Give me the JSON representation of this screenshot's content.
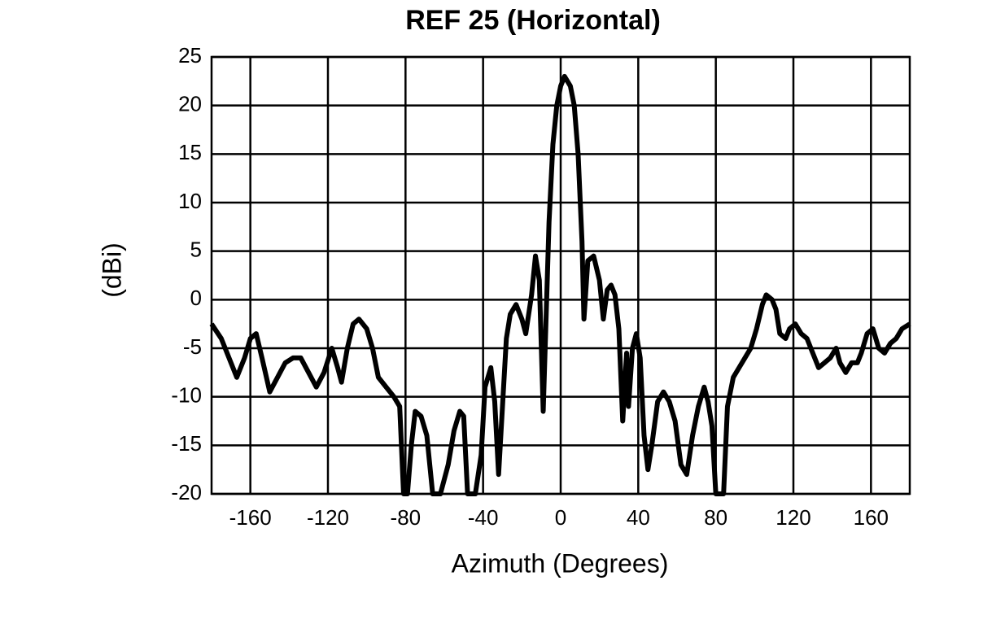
{
  "chart_data": {
    "type": "line",
    "title": "REF 25 (Horizontal)",
    "x_label": "Azimuth (Degrees)",
    "y_label": "(dBi)",
    "x": [
      -180,
      -175,
      -170,
      -167,
      -163,
      -160,
      -157,
      -154,
      -150,
      -146,
      -142,
      -138,
      -134,
      -130,
      -126,
      -122,
      -118,
      -115,
      -113,
      -110,
      -107,
      -104,
      -100,
      -97,
      -94,
      -90,
      -86,
      -83,
      -81,
      -79,
      -77,
      -75,
      -72,
      -69,
      -66,
      -62,
      -58,
      -55,
      -52,
      -50,
      -48,
      -44,
      -41,
      -39,
      -36,
      -34,
      -32,
      -30,
      -28,
      -26,
      -23,
      -20,
      -18,
      -15,
      -13,
      -11,
      -9,
      -8,
      -6,
      -4,
      -2,
      0,
      2,
      5,
      7,
      9,
      11,
      12,
      14,
      17,
      20,
      22,
      24,
      26,
      28,
      30,
      32,
      34,
      35,
      37,
      39,
      41,
      43,
      45,
      47,
      50,
      53,
      56,
      59,
      62,
      65,
      68,
      71,
      74,
      76,
      78,
      80,
      84,
      86,
      89,
      92,
      95,
      98,
      101,
      104,
      106,
      109,
      111,
      113,
      116,
      118,
      121,
      124,
      127,
      130,
      133,
      136,
      139,
      142,
      144,
      147,
      150,
      153,
      155,
      158,
      161,
      164,
      167,
      170,
      173,
      176,
      180
    ],
    "values": [
      -2.5,
      -4,
      -6.5,
      -8,
      -6,
      -4,
      -3.5,
      -6,
      -9.5,
      -8,
      -6.5,
      -6,
      -6,
      -7.5,
      -9,
      -7.5,
      -5,
      -7,
      -8.5,
      -5,
      -2.5,
      -2,
      -3,
      -5,
      -8,
      -9,
      -10,
      -11,
      -20,
      -20,
      -15,
      -11.5,
      -12,
      -14,
      -20,
      -20,
      -17,
      -13.5,
      -11.5,
      -12,
      -20,
      -20,
      -16,
      -9,
      -7,
      -10.5,
      -18,
      -11,
      -4,
      -1.5,
      -0.5,
      -2,
      -3.5,
      0.5,
      4.5,
      2,
      -11.5,
      -5,
      8,
      16,
      20,
      22,
      23,
      22,
      20,
      15,
      6,
      -2,
      4,
      4.5,
      2,
      -2,
      1,
      1.5,
      0.5,
      -3,
      -12.5,
      -5.5,
      -11,
      -5,
      -3.5,
      -6,
      -14,
      -17.5,
      -15,
      -10.5,
      -9.5,
      -10.5,
      -12.5,
      -17,
      -18,
      -14,
      -11,
      -9,
      -10.5,
      -13,
      -20,
      -20,
      -11,
      -8,
      -7,
      -6,
      -5,
      -3,
      -0.5,
      0.5,
      0,
      -1,
      -3.5,
      -4,
      -3,
      -2.5,
      -3.5,
      -4,
      -5.5,
      -7,
      -6.5,
      -6,
      -5,
      -6.5,
      -7.5,
      -6.5,
      -6.5,
      -5.5,
      -3.5,
      -3,
      -5,
      -5.5,
      -4.5,
      -4,
      -3,
      -2.5
    ],
    "color": "#000000",
    "xlim": [
      -180,
      180
    ],
    "xticks": [
      -160,
      -120,
      -80,
      -40,
      0,
      40,
      80,
      120,
      160
    ],
    "ylim": [
      -20,
      25
    ],
    "yticks": [
      -20,
      -15,
      -10,
      -5,
      0,
      5,
      10,
      15,
      20,
      25
    ],
    "grid": true
  }
}
